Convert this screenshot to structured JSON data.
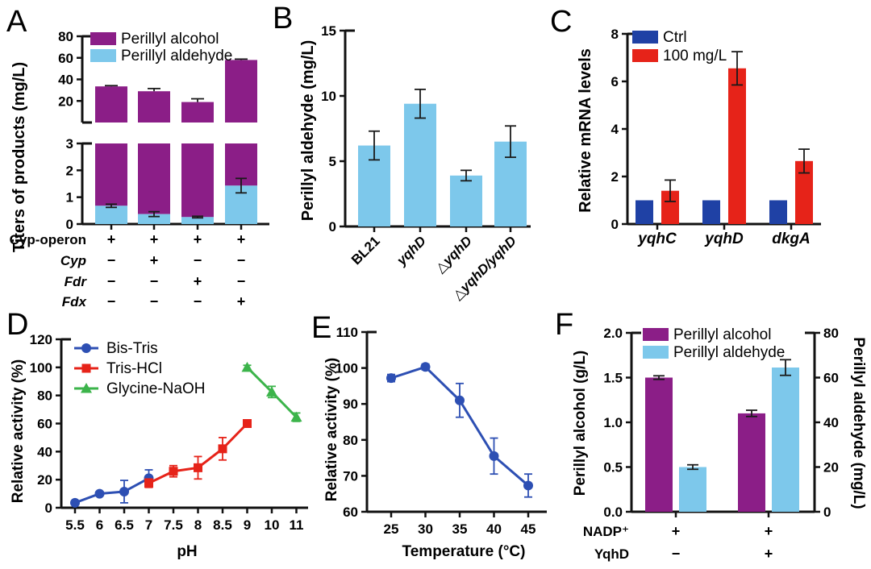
{
  "figure": {
    "background": "#ffffff"
  },
  "colors": {
    "purple": "#8B1E87",
    "light_blue": "#7DC8EB",
    "blue": "#1F41A5",
    "red": "#E62319",
    "green": "#3CB44B",
    "line_blue": "#2D4FB3",
    "axis": "#111111",
    "error": "#1a1a1a"
  },
  "panels": [
    {
      "letter": "A"
    },
    {
      "letter": "B"
    },
    {
      "letter": "C"
    },
    {
      "letter": "D"
    },
    {
      "letter": "E"
    },
    {
      "letter": "F"
    }
  ],
  "chart_data": [
    {
      "panel": "A",
      "type": "stacked-bar-broken-axis",
      "ylabel": "Titers of products (mg/L)",
      "legend": [
        {
          "label": "Perillyl alcohol",
          "color_key": "purple"
        },
        {
          "label": "Perillyl aldehyde",
          "color_key": "light_blue"
        }
      ],
      "top_segment": {
        "ylim": [
          0,
          80
        ],
        "yticks": [
          20,
          40,
          60,
          80
        ],
        "totals": [
          33.5,
          29,
          19,
          58
        ],
        "errors": [
          0.7,
          2.5,
          3,
          0.8
        ]
      },
      "bottom_segment": {
        "ylim": [
          0,
          3
        ],
        "yticks": [
          0,
          1,
          2,
          3
        ],
        "aldehyde": [
          0.68,
          0.37,
          0.26,
          1.43
        ],
        "aldehyde_errors": [
          0.06,
          0.09,
          0.03,
          0.27
        ],
        "alcohol_fills_to_top": true
      },
      "conditions": [
        {
          "label": "Cyp-operon",
          "italic": false,
          "values": [
            "+",
            "+",
            "+",
            "+"
          ]
        },
        {
          "label": "Cyp",
          "italic": true,
          "values": [
            "−",
            "+",
            "−",
            "−"
          ]
        },
        {
          "label": "Fdr",
          "italic": true,
          "values": [
            "−",
            "−",
            "+",
            "−"
          ]
        },
        {
          "label": "Fdx",
          "italic": true,
          "values": [
            "−",
            "−",
            "−",
            "+"
          ]
        }
      ]
    },
    {
      "panel": "B",
      "type": "bar",
      "ylabel": "Perillyl aldehyde (mg/L)",
      "ylim": [
        0,
        15
      ],
      "yticks": [
        0,
        5,
        10,
        15
      ],
      "categories": [
        "BL21",
        "yqhD",
        "△yqhD",
        "△yqhD/yqhD"
      ],
      "categories_italic": [
        false,
        true,
        true,
        true
      ],
      "values": [
        6.2,
        9.4,
        3.9,
        6.5
      ],
      "errors": [
        1.1,
        1.1,
        0.4,
        1.2
      ],
      "bar_color_key": "light_blue",
      "x_label_rotation": -45
    },
    {
      "panel": "C",
      "type": "grouped-bar",
      "ylabel": "Relative mRNA levels",
      "ylim": [
        0,
        8
      ],
      "yticks": [
        0,
        2,
        4,
        6,
        8
      ],
      "categories": [
        "yqhC",
        "yqhD",
        "dkgA"
      ],
      "series": [
        {
          "name": "Ctrl",
          "color_key": "blue",
          "values": [
            1,
            1,
            1
          ],
          "errors": [
            0,
            0,
            0
          ]
        },
        {
          "name": "100 mg/L",
          "color_key": "red",
          "values": [
            1.4,
            6.55,
            2.65
          ],
          "errors": [
            0.45,
            0.7,
            0.5
          ]
        }
      ]
    },
    {
      "panel": "D",
      "type": "line",
      "ylabel": "Relative activity (%)",
      "xlabel": "pH",
      "ylim": [
        0,
        120
      ],
      "yticks": [
        0,
        20,
        40,
        60,
        80,
        100,
        120
      ],
      "xticks": [
        "5.5",
        "6",
        "6.5",
        "7",
        "7.5",
        "8",
        "8.5",
        "9",
        "10",
        "11"
      ],
      "series": [
        {
          "name": "Bis-Tris",
          "color_key": "line_blue",
          "marker": "circle",
          "points": [
            {
              "x": 0,
              "y": 3.5,
              "err": 1
            },
            {
              "x": 1,
              "y": 10,
              "err": 1.5
            },
            {
              "x": 2,
              "y": 11.5,
              "err": 8
            },
            {
              "x": 3,
              "y": 21,
              "err": 6
            }
          ]
        },
        {
          "name": "Tris-HCl",
          "color_key": "red",
          "marker": "square",
          "points": [
            {
              "x": 3,
              "y": 17.5,
              "err": 3
            },
            {
              "x": 4,
              "y": 26,
              "err": 4
            },
            {
              "x": 5,
              "y": 28.5,
              "err": 8
            },
            {
              "x": 6,
              "y": 42,
              "err": 8
            },
            {
              "x": 7,
              "y": 60,
              "err": 1
            }
          ]
        },
        {
          "name": "Glycine-NaOH",
          "color_key": "green",
          "marker": "triangle",
          "points": [
            {
              "x": 7,
              "y": 100,
              "err": 1.5
            },
            {
              "x": 8,
              "y": 82.5,
              "err": 4
            },
            {
              "x": 9,
              "y": 64.5,
              "err": 3
            }
          ]
        }
      ]
    },
    {
      "panel": "E",
      "type": "line",
      "ylabel": "Relative activity (%)",
      "xlabel": "Temperature (°C)",
      "ylim": [
        60,
        110
      ],
      "yticks": [
        60,
        70,
        80,
        90,
        100,
        110
      ],
      "xticks": [
        "25",
        "30",
        "35",
        "40",
        "45"
      ],
      "series": [
        {
          "name": "",
          "color_key": "line_blue",
          "marker": "circle",
          "points": [
            {
              "x": 0,
              "y": 97.2,
              "err": 1
            },
            {
              "x": 1,
              "y": 100.3,
              "err": 0.8
            },
            {
              "x": 2,
              "y": 91,
              "err": 4.7
            },
            {
              "x": 3,
              "y": 75.5,
              "err": 5
            },
            {
              "x": 4,
              "y": 67.3,
              "err": 3.2
            }
          ]
        }
      ]
    },
    {
      "panel": "F",
      "type": "dual-axis-bar",
      "left_axis": {
        "label": "Perillyl alcohol (g/L)",
        "ylim": [
          0,
          2
        ],
        "yticks": [
          "0.0",
          "0.5",
          "1.0",
          "1.5",
          "2.0"
        ]
      },
      "right_axis": {
        "label": "Perillyl aldehyde (mg/L)",
        "ylim": [
          0,
          80
        ],
        "yticks": [
          "0",
          "20",
          "40",
          "60",
          "80"
        ]
      },
      "legend": [
        {
          "label": "Perillyl alcohol",
          "color_key": "purple"
        },
        {
          "label": "Perillyl aldehyde",
          "color_key": "light_blue"
        }
      ],
      "groups": [
        {
          "alcohol": 1.5,
          "alcohol_err": 0.02,
          "aldehyde": 20,
          "aldehyde_err": 1
        },
        {
          "alcohol": 1.1,
          "alcohol_err": 0.035,
          "aldehyde": 64.5,
          "aldehyde_err": 3.5
        }
      ],
      "conditions": [
        {
          "label": "NADP⁺",
          "values": [
            "+",
            "+"
          ]
        },
        {
          "label": "YqhD",
          "values": [
            "−",
            "+"
          ]
        }
      ]
    }
  ]
}
